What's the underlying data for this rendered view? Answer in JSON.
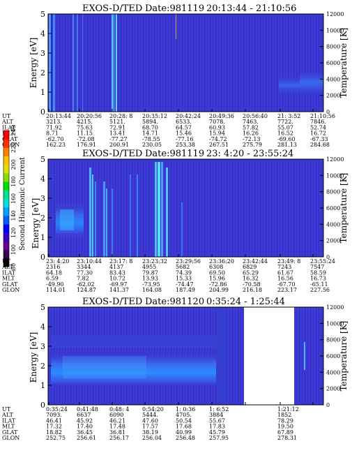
{
  "chart_data": [
    {
      "type": "heatmap",
      "title": "EXOS-D/TED",
      "date_label": "Date:981119",
      "time_range": "20:13:44 - 21:10:56",
      "ylabel": "Energy [eV]",
      "ylim": [
        0,
        5
      ],
      "yticks": [
        "0",
        "1",
        "2",
        "3",
        "4",
        "5"
      ],
      "right_label": "Temperature [K]",
      "right_ylim": [
        0,
        12000
      ],
      "right_ticks": [
        "0",
        "2000",
        "4000",
        "6000",
        "8000",
        "10000",
        "12000"
      ],
      "row_labels": [
        "UT",
        "ALT",
        "ILAT",
        "MLT",
        "GLAT",
        "GLON"
      ],
      "columns": [
        [
          "20:13:44",
          "3213.",
          "71.92",
          "8.71",
          "-62.70",
          "162.23"
        ],
        [
          "20:20:56",
          "4215.",
          "75.63",
          "11.15",
          "-72.08",
          "176.91"
        ],
        [
          "20:28: 8",
          "5121.",
          "72.91",
          "13.41",
          "-77.27",
          "200.91"
        ],
        [
          "20:35:12",
          "5894.",
          "68.70",
          "14.71",
          "-78.55",
          "230.05"
        ],
        [
          "20:42:24",
          "6533.",
          "64.57",
          "15.46",
          "-77.16",
          "253.38"
        ],
        [
          "20:49:36",
          "7078.",
          "60.93",
          "15.94",
          "-74.72",
          "267.51"
        ],
        [
          "20:56:40",
          "7463.",
          "57.82",
          "16.26",
          "-72.13",
          "275.79"
        ],
        [
          "21: 3:52",
          "7722.",
          "55.07",
          "16.52",
          "-69.60",
          "281.13"
        ],
        [
          "21:10:56",
          "7846.",
          "52.74",
          "16.72",
          "-67.33",
          "284.68"
        ]
      ]
    },
    {
      "type": "heatmap",
      "title": "EXOS-D/TED",
      "date_label": "Date:981119",
      "time_range": "23: 4:20 - 23:55:24",
      "ylabel": "Energy [eV]",
      "ylim": [
        0,
        5
      ],
      "yticks": [
        "0",
        "1",
        "2",
        "3",
        "4",
        "5"
      ],
      "right_label": "Temperature [K]",
      "right_ylim": [
        0,
        12000
      ],
      "right_ticks": [
        "0",
        "2000",
        "4000",
        "6000",
        "8000",
        "10000",
        "12000"
      ],
      "row_labels": [
        "UT",
        "ALT",
        "ILAT",
        "MLT",
        "GLAT",
        "GLON"
      ],
      "columns": [
        [
          "23: 4:20",
          "2316",
          "64.18",
          "6.59",
          "-49.90",
          "114.01"
        ],
        [
          "23:10:44",
          "3344",
          "77.30",
          "7.82",
          "-62.02",
          "124.87"
        ],
        [
          "23:17: 8",
          "4137",
          "83.43",
          "10.72",
          "-69.97",
          "141.37"
        ],
        [
          "23:23:32",
          "4955",
          "79.87",
          "13.93",
          "-73.95",
          "164.08"
        ],
        [
          "23:29:56",
          "5682",
          "74.39",
          "15.33",
          "-74.47",
          "187.49"
        ],
        [
          "23:36:20",
          "6308",
          "69.50",
          "15.96",
          "-72.86",
          "204.99"
        ],
        [
          "23:42:44",
          "6829",
          "65.29",
          "16.32",
          "-70.58",
          "216.18"
        ],
        [
          "23:49: 8",
          "7243",
          "61.67",
          "16.56",
          "-67.70",
          "223.17"
        ],
        [
          "23:55:24",
          "7547",
          "58.59",
          "16.73",
          "-65.11",
          "227.56"
        ]
      ]
    },
    {
      "type": "heatmap",
      "title": "EXOS-D/TED",
      "date_label": "Date:981120",
      "time_range": "0:35:24 - 1:25:44",
      "ylabel": "Energy [eV]",
      "ylim": [
        0,
        5
      ],
      "yticks": [
        "0",
        "1",
        "2",
        "3",
        "4",
        "5"
      ],
      "right_label": "Temperature [K]",
      "right_ylim": [
        0,
        12000
      ],
      "right_ticks": [
        "0",
        "2000",
        "4000",
        "6000",
        "8000",
        "10000",
        "12000"
      ],
      "row_labels": [
        "UT",
        "ALT",
        "ILAT",
        "MLT",
        "GLAT",
        "GLON"
      ],
      "columns": [
        [
          "0:35:24",
          "7093.",
          "46.41",
          "17.32",
          "18.82",
          "252.75"
        ],
        [
          "0:41:48",
          "6637",
          "45.92",
          "17.40",
          "36.45",
          "256.61"
        ],
        [
          "0:48: 4",
          "6090",
          "46.21",
          "17.48",
          "36.81",
          "256.17"
        ],
        [
          "0:54:20",
          "5444.",
          "47.60",
          "17.57",
          "38.19",
          "256.04"
        ],
        [
          "1: 0:36",
          "4705.",
          "50.54",
          "17.68",
          "40.99",
          "256.48"
        ],
        [
          "1: 6:52",
          "3884",
          "55.67",
          "17.83",
          "45.79",
          "257.95"
        ],
        [
          "",
          "",
          "",
          "",
          "",
          ""
        ],
        [
          "1:21:12",
          "1852",
          "78.29",
          "19.50",
          "67.89",
          "278.31"
        ],
        [
          "",
          "",
          "",
          "",
          "",
          ""
        ]
      ]
    }
  ],
  "colorbar": {
    "label": "Second Harmonic Current",
    "ticks": [
      "80",
      "100",
      "120",
      "140",
      "160",
      "180",
      "200",
      "220",
      "240"
    ],
    "range": [
      80,
      240
    ],
    "colors": [
      "#000000",
      "#3a0050",
      "#6a0090",
      "#3a00c8",
      "#0000ff",
      "#0060ff",
      "#00a0ff",
      "#00e0e0",
      "#00e090",
      "#00e000",
      "#80e000",
      "#e0e000",
      "#ffc000",
      "#ff8000",
      "#ff3000",
      "#ff0000"
    ]
  },
  "background_color": "#3a38d0"
}
